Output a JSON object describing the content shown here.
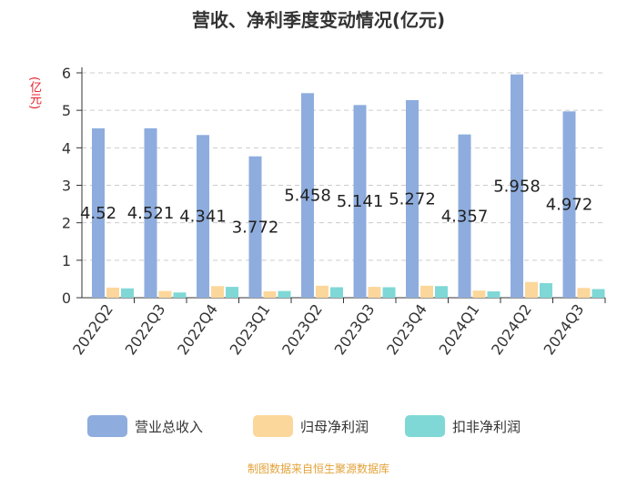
{
  "title": "营收、净利季度变动情况(亿元)",
  "unit_label": "(亿元)",
  "source": "制图数据来自恒生聚源数据库",
  "chart_data": {
    "type": "bar",
    "title": "营收、净利季度变动情况(亿元)",
    "ylabel": "(亿元)",
    "ylim": [
      0,
      6
    ],
    "yticks": [
      "0",
      "1",
      "2",
      "3",
      "4",
      "5",
      "6"
    ],
    "grid": true,
    "legend_position": "bottom",
    "categories": [
      "2022Q2",
      "2022Q3",
      "2022Q4",
      "2023Q1",
      "2023Q2",
      "2023Q3",
      "2023Q4",
      "2024Q1",
      "2024Q2",
      "2024Q3"
    ],
    "series": [
      {
        "name": "营业总收入",
        "color": "#8eadde",
        "values": [
          4.52,
          4.521,
          4.341,
          3.772,
          5.458,
          5.141,
          5.272,
          4.357,
          5.958,
          4.972
        ],
        "labels": [
          "4.52",
          "4.521",
          "4.341",
          "3.772",
          "5.458",
          "5.141",
          "5.272",
          "4.357",
          "5.958",
          "4.972"
        ]
      },
      {
        "name": "归母净利润",
        "color": "#fcd79b",
        "values": [
          0.27,
          0.18,
          0.31,
          0.17,
          0.32,
          0.29,
          0.32,
          0.19,
          0.42,
          0.26
        ]
      },
      {
        "name": "扣非净利润",
        "color": "#7fd8d6",
        "values": [
          0.25,
          0.14,
          0.29,
          0.18,
          0.28,
          0.28,
          0.31,
          0.17,
          0.39,
          0.23
        ]
      }
    ]
  }
}
